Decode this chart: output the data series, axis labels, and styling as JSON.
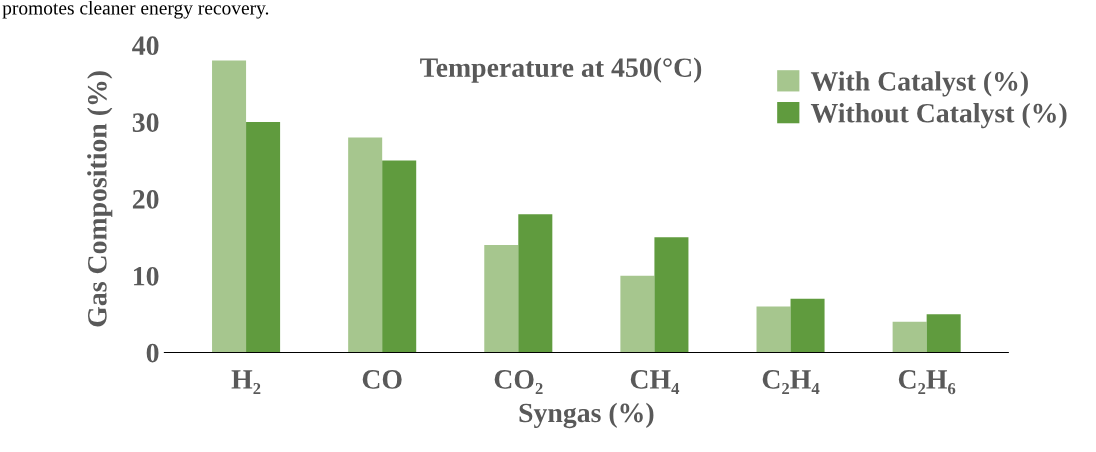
{
  "chart_data": {
    "type": "bar",
    "title": "Temperature at 450(°C)",
    "xlabel": "Syngas (%)",
    "ylabel": "Gas Composition (%)",
    "annotations": [
      "promotes cleaner energy recovery."
    ],
    "categories": [
      "H₂",
      "CO",
      "CO₂",
      "CH₄",
      "C₂H₄",
      "C₂H₆"
    ],
    "series": [
      {
        "name": "With Catalyst (%)",
        "color": "#a6c68e",
        "values": [
          38,
          28,
          14,
          10,
          6,
          4
        ]
      },
      {
        "name": "Without Catalyst (%)",
        "color": "#609b3e",
        "values": [
          30,
          25,
          18,
          15,
          7,
          5
        ]
      }
    ],
    "ylim": [
      0,
      40
    ],
    "yticks": [
      0,
      10,
      20,
      30,
      40
    ],
    "grid": false,
    "legend": "top right"
  }
}
